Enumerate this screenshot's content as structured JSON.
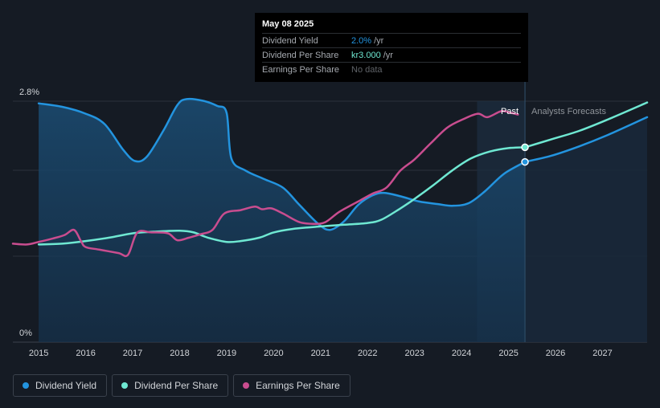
{
  "tooltip": {
    "date": "May 08 2025",
    "rows": [
      {
        "label": "Dividend Yield",
        "value": "2.0%",
        "unit": "/yr"
      },
      {
        "label": "Dividend Per Share",
        "value": "kr3.000",
        "unit": "/yr"
      },
      {
        "label": "Earnings Per Share",
        "value": "No data",
        "unit": ""
      }
    ]
  },
  "legend": {
    "items": [
      {
        "label": "Dividend Yield",
        "color": "#2394df"
      },
      {
        "label": "Dividend Per Share",
        "color": "#6fe8d2"
      },
      {
        "label": "Earnings Per Share",
        "color": "#c94d8f"
      }
    ]
  },
  "chart_data": {
    "type": "line",
    "y_axis": {
      "labels": [
        "2.8%",
        "0%"
      ],
      "min": 0,
      "max": 2.8,
      "unit": "%"
    },
    "x_axis": {
      "ticks": [
        2015,
        2016,
        2017,
        2018,
        2019,
        2020,
        2021,
        2022,
        2023,
        2024,
        2025,
        2026,
        2027
      ],
      "range": [
        2014.45,
        2027.95
      ]
    },
    "regions": {
      "past_label": "Past",
      "forecast_label": "Analysts Forecasts",
      "past_start": 2024.33,
      "divider": 2025.35
    },
    "grid": true,
    "series": [
      {
        "name": "Dividend Yield",
        "color": "#2394df",
        "area": true,
        "axis": "percent",
        "points": [
          [
            2015.0,
            2.7
          ],
          [
            2015.5,
            2.66
          ],
          [
            2016.0,
            2.58
          ],
          [
            2016.4,
            2.46
          ],
          [
            2016.8,
            2.16
          ],
          [
            2017.05,
            2.03
          ],
          [
            2017.3,
            2.08
          ],
          [
            2017.65,
            2.38
          ],
          [
            2017.95,
            2.68
          ],
          [
            2018.15,
            2.75
          ],
          [
            2018.5,
            2.73
          ],
          [
            2018.8,
            2.67
          ],
          [
            2019.0,
            2.59
          ],
          [
            2019.1,
            2.06
          ],
          [
            2019.4,
            1.92
          ],
          [
            2019.8,
            1.82
          ],
          [
            2020.2,
            1.72
          ],
          [
            2020.55,
            1.52
          ],
          [
            2020.95,
            1.3
          ],
          [
            2021.2,
            1.23
          ],
          [
            2021.5,
            1.33
          ],
          [
            2021.8,
            1.52
          ],
          [
            2022.1,
            1.63
          ],
          [
            2022.35,
            1.66
          ],
          [
            2022.7,
            1.62
          ],
          [
            2023.1,
            1.56
          ],
          [
            2023.5,
            1.53
          ],
          [
            2023.8,
            1.51
          ],
          [
            2024.15,
            1.54
          ],
          [
            2024.5,
            1.68
          ],
          [
            2024.9,
            1.88
          ],
          [
            2025.35,
            2.02
          ]
        ]
      },
      {
        "name": "Dividend Yield forecast",
        "color": "#2394df",
        "area": false,
        "axis": "percent",
        "points": [
          [
            2025.35,
            2.02
          ],
          [
            2025.9,
            2.09
          ],
          [
            2026.5,
            2.2
          ],
          [
            2027.1,
            2.33
          ],
          [
            2027.95,
            2.54
          ]
        ]
      },
      {
        "name": "Dividend Per Share",
        "color": "#6fe8d2",
        "area": false,
        "axis": "percent",
        "points": [
          [
            2015.0,
            1.06
          ],
          [
            2015.5,
            1.07
          ],
          [
            2016.0,
            1.1
          ],
          [
            2016.5,
            1.14
          ],
          [
            2017.0,
            1.19
          ],
          [
            2017.5,
            1.21
          ],
          [
            2018.0,
            1.22
          ],
          [
            2018.3,
            1.2
          ],
          [
            2018.6,
            1.14
          ],
          [
            2019.0,
            1.09
          ],
          [
            2019.3,
            1.1
          ],
          [
            2019.7,
            1.14
          ],
          [
            2020.0,
            1.2
          ],
          [
            2020.4,
            1.24
          ],
          [
            2021.0,
            1.27
          ],
          [
            2021.5,
            1.29
          ],
          [
            2022.0,
            1.31
          ],
          [
            2022.3,
            1.35
          ],
          [
            2022.7,
            1.48
          ],
          [
            2023.0,
            1.59
          ],
          [
            2023.4,
            1.75
          ],
          [
            2023.8,
            1.92
          ],
          [
            2024.2,
            2.06
          ],
          [
            2024.6,
            2.14
          ],
          [
            2025.0,
            2.18
          ],
          [
            2025.35,
            2.19
          ]
        ]
      },
      {
        "name": "Dividend Per Share forecast",
        "color": "#6fe8d2",
        "area": false,
        "axis": "percent",
        "points": [
          [
            2025.35,
            2.19
          ],
          [
            2025.9,
            2.28
          ],
          [
            2026.5,
            2.38
          ],
          [
            2027.1,
            2.51
          ],
          [
            2027.95,
            2.71
          ]
        ]
      },
      {
        "name": "Earnings Per Share",
        "color": "#c94d8f",
        "area": false,
        "axis": "percent",
        "points": [
          [
            2014.45,
            1.07
          ],
          [
            2014.75,
            1.06
          ],
          [
            2015.0,
            1.09
          ],
          [
            2015.3,
            1.13
          ],
          [
            2015.55,
            1.17
          ],
          [
            2015.75,
            1.23
          ],
          [
            2015.9,
            1.1
          ],
          [
            2016.0,
            1.03
          ],
          [
            2016.3,
            1.0
          ],
          [
            2016.7,
            0.96
          ],
          [
            2016.9,
            0.94
          ],
          [
            2017.1,
            1.2
          ],
          [
            2017.4,
            1.2
          ],
          [
            2017.75,
            1.19
          ],
          [
            2017.95,
            1.11
          ],
          [
            2018.2,
            1.14
          ],
          [
            2018.45,
            1.18
          ],
          [
            2018.7,
            1.23
          ],
          [
            2018.95,
            1.42
          ],
          [
            2019.3,
            1.46
          ],
          [
            2019.6,
            1.5
          ],
          [
            2019.75,
            1.47
          ],
          [
            2019.95,
            1.48
          ],
          [
            2020.2,
            1.42
          ],
          [
            2020.55,
            1.32
          ],
          [
            2020.85,
            1.3
          ],
          [
            2021.1,
            1.32
          ],
          [
            2021.4,
            1.44
          ],
          [
            2021.8,
            1.56
          ],
          [
            2022.1,
            1.65
          ],
          [
            2022.4,
            1.72
          ],
          [
            2022.7,
            1.92
          ],
          [
            2023.0,
            2.05
          ],
          [
            2023.35,
            2.24
          ],
          [
            2023.7,
            2.42
          ],
          [
            2024.05,
            2.52
          ],
          [
            2024.35,
            2.58
          ],
          [
            2024.55,
            2.54
          ],
          [
            2024.85,
            2.61
          ],
          [
            2025.05,
            2.59
          ],
          [
            2025.2,
            2.57
          ]
        ]
      }
    ],
    "markers": [
      {
        "series": "Dividend Per Share",
        "x": 2025.35,
        "y": 2.19
      },
      {
        "series": "Dividend Yield",
        "x": 2025.35,
        "y": 2.02
      }
    ]
  }
}
